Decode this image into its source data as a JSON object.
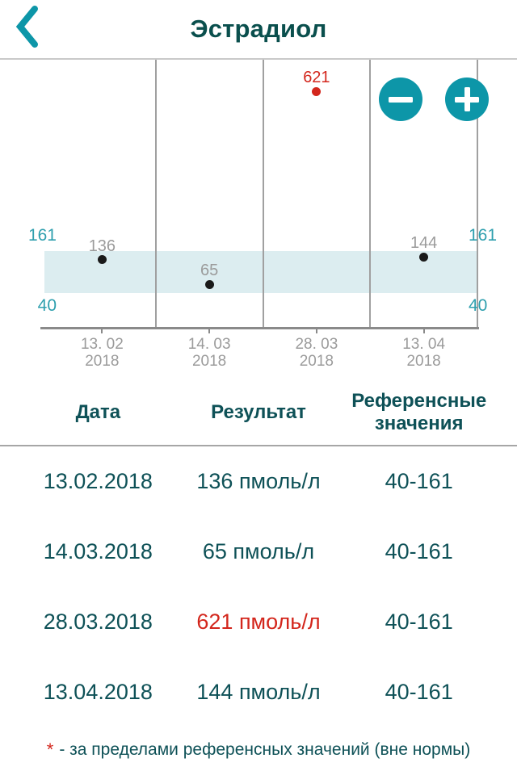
{
  "colors": {
    "accent_teal": "#0D96A8",
    "range_label_teal": "#2E9FAE",
    "title_teal": "#0A4F4D",
    "dark_teal_text": "#0E5157",
    "out_of_range_red": "#D3261C",
    "muted_gray_label": "#9B9B9B",
    "grid_gray": "#A0A0A0",
    "axis_gray": "#8A8A8A",
    "reference_band_fill": "#DCEDF0"
  },
  "header": {
    "title": "Эстрадиол",
    "back_icon": "chevron-left-icon"
  },
  "chart_data": {
    "type": "scatter",
    "title": "Эстрадиол",
    "unit": "пмоль/л",
    "dates": [
      "13.02.2018",
      "14.03.2018",
      "28.03.2018",
      "13.04.2018"
    ],
    "x_tick_labels": [
      [
        "13. 02",
        "2018"
      ],
      [
        "14. 03",
        "2018"
      ],
      [
        "28. 03",
        "2018"
      ],
      [
        "13. 04",
        "2018"
      ]
    ],
    "values": [
      136,
      65,
      621,
      144
    ],
    "out_of_range": [
      false,
      false,
      true,
      false
    ],
    "reference_range": {
      "low": 40,
      "high": 161
    },
    "reference_band": true,
    "grid": "vertical-separators",
    "legend_position": "none",
    "controls": [
      "zoom-out-icon",
      "zoom-in-icon"
    ]
  },
  "table": {
    "headers": [
      "Дата",
      "Результат",
      "Референсные значения"
    ],
    "rows": [
      {
        "date": "13.02.2018",
        "result": "136 пмоль/л",
        "range": "40-161",
        "out_of_range": false
      },
      {
        "date": "14.03.2018",
        "result": "65 пмоль/л",
        "range": "40-161",
        "out_of_range": false
      },
      {
        "date": "28.03.2018",
        "result": "621 пмоль/л",
        "range": "40-161",
        "out_of_range": true
      },
      {
        "date": "13.04.2018",
        "result": "144 пмоль/л",
        "range": "40-161",
        "out_of_range": false
      }
    ]
  },
  "footnote": {
    "marker": "*",
    "text": "- за пределами референсных значений (вне нормы)"
  }
}
